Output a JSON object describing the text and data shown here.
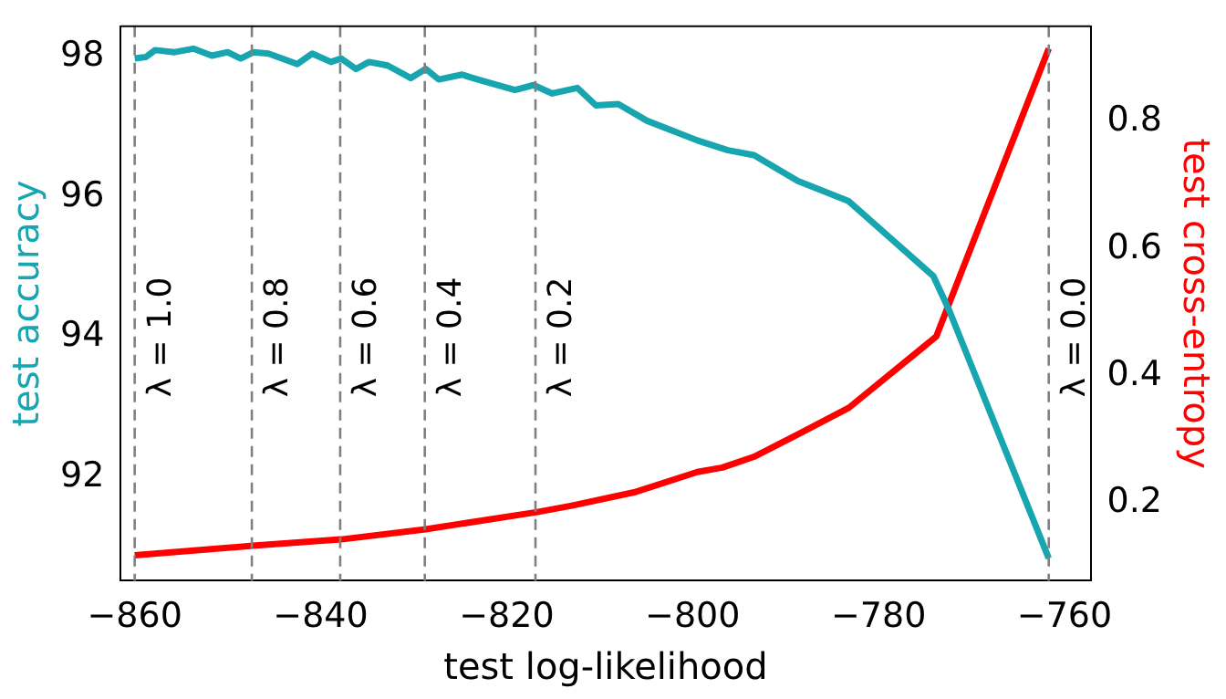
{
  "chart_data": {
    "type": "line",
    "xlabel": "test log-likelihood",
    "ylabel": "test accuracy",
    "y2label": "test cross-entropy",
    "xlim": [
      -861.5,
      -757.2
    ],
    "xticks": [
      -860,
      -840,
      -820,
      -800,
      -780,
      -760
    ],
    "ylim": [
      90.52,
      98.44
    ],
    "yticks": [
      92,
      94,
      96,
      98
    ],
    "y2lim": [
      0.078,
      0.95
    ],
    "y2ticks": [
      0.2,
      0.4,
      0.6,
      0.8
    ],
    "series": [
      {
        "color": "#17a5b0",
        "x": [
          -860,
          -858.8,
          -857.8,
          -855.7,
          -853.7,
          -851.7,
          -850,
          -848.6,
          -847.2,
          -845.6,
          -842.5,
          -840.9,
          -838.9,
          -837.8,
          -836.2,
          -834.8,
          -832.8,
          -830.3,
          -828.7,
          -827.3,
          -824.8,
          -823.6,
          -821.8,
          -819.1,
          -817.1,
          -815.1,
          -812.4,
          -810.4,
          -808,
          -804.9,
          -799.5,
          -796.2,
          -793.4,
          -788.7,
          -783.2,
          -774.1,
          -772.4,
          -761.7
        ],
        "values": [
          97.98,
          98.0,
          98.1,
          98.07,
          98.12,
          98.02,
          98.07,
          97.98,
          98.07,
          98.05,
          97.9,
          98.05,
          97.93,
          97.98,
          97.83,
          97.93,
          97.88,
          97.7,
          97.83,
          97.68,
          97.75,
          97.7,
          97.63,
          97.53,
          97.6,
          97.48,
          97.56,
          97.31,
          97.33,
          97.09,
          96.81,
          96.67,
          96.6,
          96.23,
          95.94,
          94.87,
          94.38,
          90.84
        ]
      },
      {
        "color": "#ff0000",
        "axis": "y2",
        "x": [
          -860,
          -847.3,
          -837.8,
          -828.7,
          -816.7,
          -813,
          -806.3,
          -799.5,
          -796.8,
          -793.4,
          -788.7,
          -783.2,
          -773.8,
          -761.7
        ],
        "values": [
          0.118,
          0.133,
          0.143,
          0.159,
          0.186,
          0.196,
          0.217,
          0.249,
          0.256,
          0.273,
          0.308,
          0.35,
          0.462,
          0.915
        ]
      }
    ],
    "ref_lines": [
      {
        "axis": "x",
        "value": -860,
        "color": "#808080",
        "line_style": "dashed"
      },
      {
        "axis": "x",
        "value": -847.4,
        "color": "#808080",
        "line_style": "dashed"
      },
      {
        "axis": "x",
        "value": -837.9,
        "color": "#808080",
        "line_style": "dashed"
      },
      {
        "axis": "x",
        "value": -828.8,
        "color": "#808080",
        "line_style": "dashed"
      },
      {
        "axis": "x",
        "value": -816.9,
        "color": "#808080",
        "line_style": "dashed"
      },
      {
        "axis": "x",
        "value": -761.7,
        "color": "#808080",
        "line_style": "dashed"
      }
    ],
    "annotations": [
      {
        "text": "λ = 1.0",
        "x": -860,
        "y": 94
      },
      {
        "text": "λ = 0.8",
        "x": -847.4,
        "y": 94
      },
      {
        "text": "λ = 0.6",
        "x": -837.9,
        "y": 94
      },
      {
        "text": "λ = 0.4",
        "x": -828.8,
        "y": 94
      },
      {
        "text": "λ = 0.2",
        "x": -816.9,
        "y": 94
      },
      {
        "text": "λ = 0.0",
        "x": -761.7,
        "y": 94
      }
    ],
    "grid": false,
    "legend": false
  }
}
